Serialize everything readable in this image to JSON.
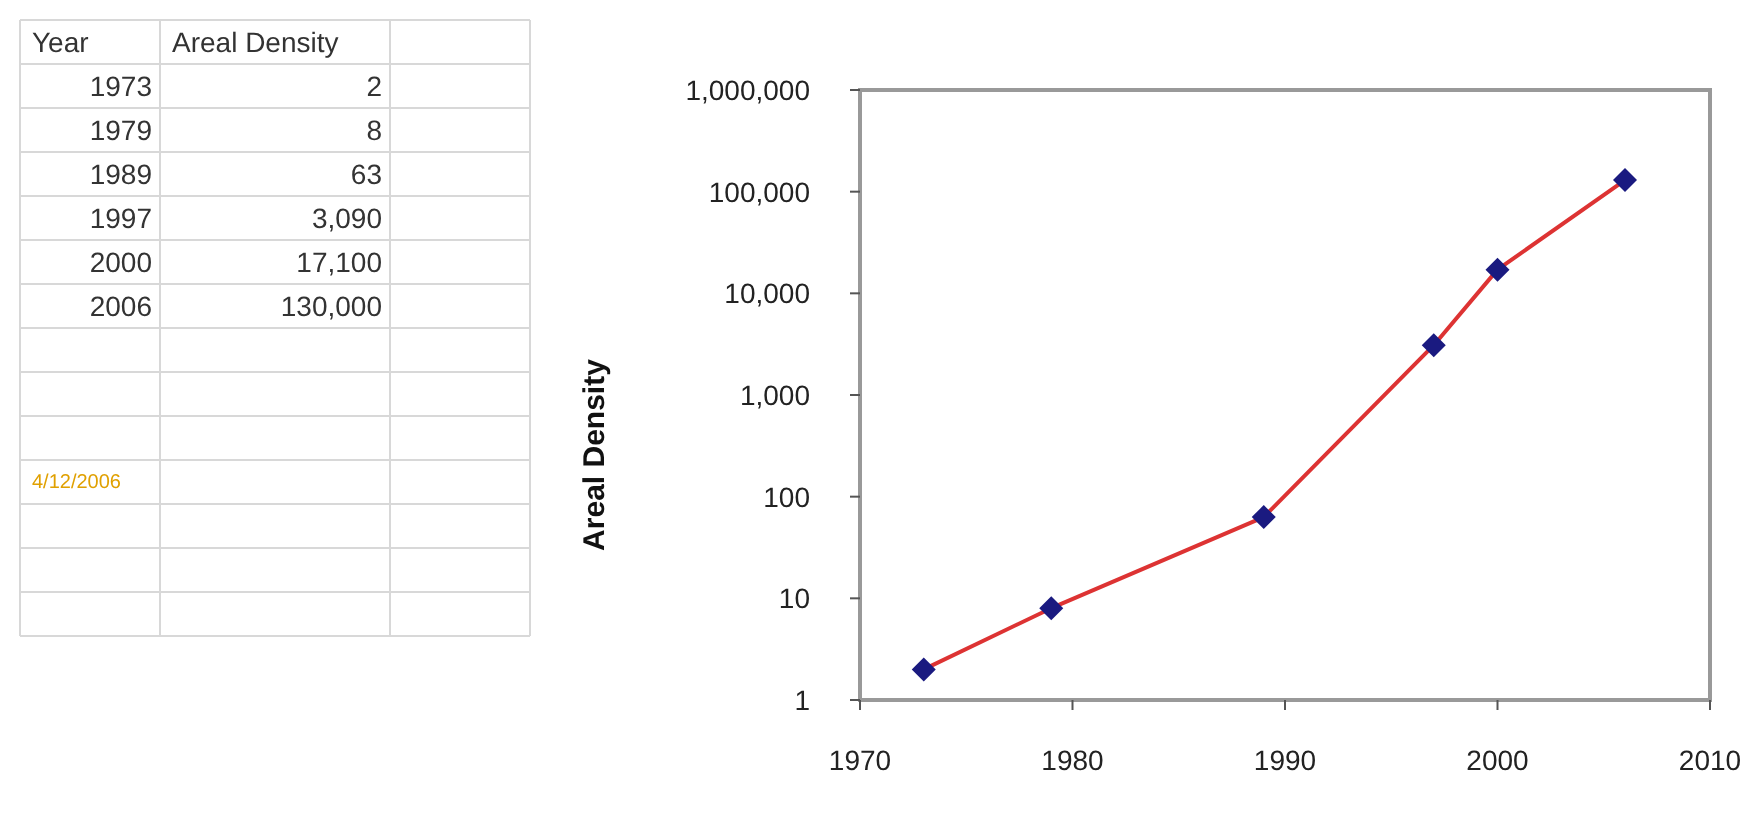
{
  "chart_data": {
    "type": "line",
    "ylabel": "Areal Density",
    "x": [
      1973,
      1979,
      1989,
      1997,
      2000,
      2006
    ],
    "series": [
      {
        "color": "#dd3333",
        "values": [
          2,
          8,
          63,
          3090,
          17100,
          130000
        ]
      }
    ],
    "value_labels": [
      "2",
      "8",
      "63",
      "3,090",
      "17,100",
      "130,000"
    ],
    "xlim": [
      1970,
      2010
    ],
    "xticks": [
      1970,
      1980,
      1990,
      2000,
      2010
    ],
    "ylim": [
      1,
      1000000
    ],
    "yticks": [
      {
        "value": 1,
        "label": "1"
      },
      {
        "value": 10,
        "label": "10"
      },
      {
        "value": 100,
        "label": "100"
      },
      {
        "value": 1000,
        "label": "1,000"
      },
      {
        "value": 10000,
        "label": "10,000"
      },
      {
        "value": 100000,
        "label": "100,000"
      },
      {
        "value": 1000000,
        "label": "1,000,000"
      }
    ],
    "log": true,
    "grid": false,
    "marker": "diamond",
    "line_style": "solid",
    "annotations": [
      "Year",
      "Areal Density",
      "4/12/2006",
      "1973",
      "1979",
      "1989",
      "1997",
      "2000",
      "2006"
    ]
  }
}
